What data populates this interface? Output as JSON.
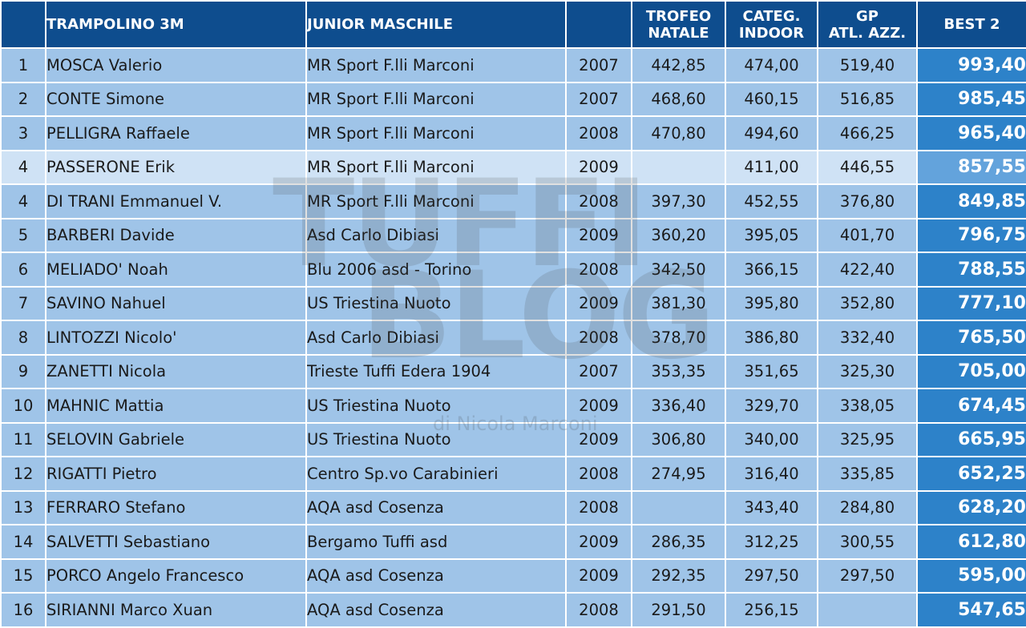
{
  "header": {
    "pos": "",
    "event": "TRAMPOLINO 3M",
    "category": "JUNIOR MASCHILE",
    "year": "",
    "trofeo_line1": "TROFEO",
    "trofeo_line2": "NATALE",
    "categ_line1": "CATEG.",
    "categ_line2": "INDOOR",
    "gp_line1": "GP",
    "gp_line2": "ATL. AZZ.",
    "best": "BEST 2"
  },
  "watermark": {
    "line1": "TUFFI",
    "line2": "BLOG",
    "line3": "di Nicola Marconi"
  },
  "colors": {
    "header_bg": "#0e4d8e",
    "row_bg": "#9fc4e8",
    "highlight_row_bg": "#cfe2f5",
    "best_bg": "#2d82c9"
  },
  "rows": [
    {
      "pos": "1",
      "name": "MOSCA Valerio",
      "club": "MR Sport F.lli Marconi",
      "year": "2007",
      "trofeo": "442,85",
      "categ": "474,00",
      "gp": "519,40",
      "best": "993,40",
      "highlight": false
    },
    {
      "pos": "2",
      "name": "CONTE Simone",
      "club": "MR Sport F.lli Marconi",
      "year": "2007",
      "trofeo": "468,60",
      "categ": "460,15",
      "gp": "516,85",
      "best": "985,45",
      "highlight": false
    },
    {
      "pos": "3",
      "name": "PELLIGRA Raffaele",
      "club": "MR Sport F.lli Marconi",
      "year": "2008",
      "trofeo": "470,80",
      "categ": "494,60",
      "gp": "466,25",
      "best": "965,40",
      "highlight": false
    },
    {
      "pos": "4",
      "name": "PASSERONE Erik",
      "club": "MR Sport F.lli Marconi",
      "year": "2009",
      "trofeo": "",
      "categ": "411,00",
      "gp": "446,55",
      "best": "857,55",
      "highlight": true
    },
    {
      "pos": "4",
      "name": "DI TRANI Emmanuel V.",
      "club": "MR Sport F.lli Marconi",
      "year": "2008",
      "trofeo": "397,30",
      "categ": "452,55",
      "gp": "376,80",
      "best": "849,85",
      "highlight": false
    },
    {
      "pos": "5",
      "name": "BARBERI Davide",
      "club": "Asd Carlo Dibiasi",
      "year": "2009",
      "trofeo": "360,20",
      "categ": "395,05",
      "gp": "401,70",
      "best": "796,75",
      "highlight": false
    },
    {
      "pos": "6",
      "name": "MELIADO' Noah",
      "club": "Blu 2006 asd - Torino",
      "year": "2008",
      "trofeo": "342,50",
      "categ": "366,15",
      "gp": "422,40",
      "best": "788,55",
      "highlight": false
    },
    {
      "pos": "7",
      "name": "SAVINO Nahuel",
      "club": "US Triestina Nuoto",
      "year": "2009",
      "trofeo": "381,30",
      "categ": "395,80",
      "gp": "352,80",
      "best": "777,10",
      "highlight": false
    },
    {
      "pos": "8",
      "name": "LINTOZZI Nicolo'",
      "club": "Asd Carlo Dibiasi",
      "year": "2008",
      "trofeo": "378,70",
      "categ": "386,80",
      "gp": "332,40",
      "best": "765,50",
      "highlight": false
    },
    {
      "pos": "9",
      "name": "ZANETTI Nicola",
      "club": "Trieste Tuffi Edera 1904",
      "year": "2007",
      "trofeo": "353,35",
      "categ": "351,65",
      "gp": "325,30",
      "best": "705,00",
      "highlight": false
    },
    {
      "pos": "10",
      "name": "MAHNIC Mattia",
      "club": "US Triestina Nuoto",
      "year": "2009",
      "trofeo": "336,40",
      "categ": "329,70",
      "gp": "338,05",
      "best": "674,45",
      "highlight": false
    },
    {
      "pos": "11",
      "name": "SELOVIN Gabriele",
      "club": "US Triestina Nuoto",
      "year": "2009",
      "trofeo": "306,80",
      "categ": "340,00",
      "gp": "325,95",
      "best": "665,95",
      "highlight": false
    },
    {
      "pos": "12",
      "name": "RIGATTI Pietro",
      "club": "Centro Sp.vo Carabinieri",
      "year": "2008",
      "trofeo": "274,95",
      "categ": "316,40",
      "gp": "335,85",
      "best": "652,25",
      "highlight": false
    },
    {
      "pos": "13",
      "name": "FERRARO Stefano",
      "club": "AQA asd Cosenza",
      "year": "2008",
      "trofeo": "",
      "categ": "343,40",
      "gp": "284,80",
      "best": "628,20",
      "highlight": false
    },
    {
      "pos": "14",
      "name": "SALVETTI Sebastiano",
      "club": "Bergamo Tuffi asd",
      "year": "2009",
      "trofeo": "286,35",
      "categ": "312,25",
      "gp": "300,55",
      "best": "612,80",
      "highlight": false
    },
    {
      "pos": "15",
      "name": "PORCO Angelo Francesco",
      "club": "AQA asd Cosenza",
      "year": "2009",
      "trofeo": "292,35",
      "categ": "297,50",
      "gp": "297,50",
      "best": "595,00",
      "highlight": false
    },
    {
      "pos": "16",
      "name": "SIRIANNI Marco Xuan",
      "club": "AQA asd Cosenza",
      "year": "2008",
      "trofeo": "291,50",
      "categ": "256,15",
      "gp": "",
      "best": "547,65",
      "highlight": false
    }
  ]
}
